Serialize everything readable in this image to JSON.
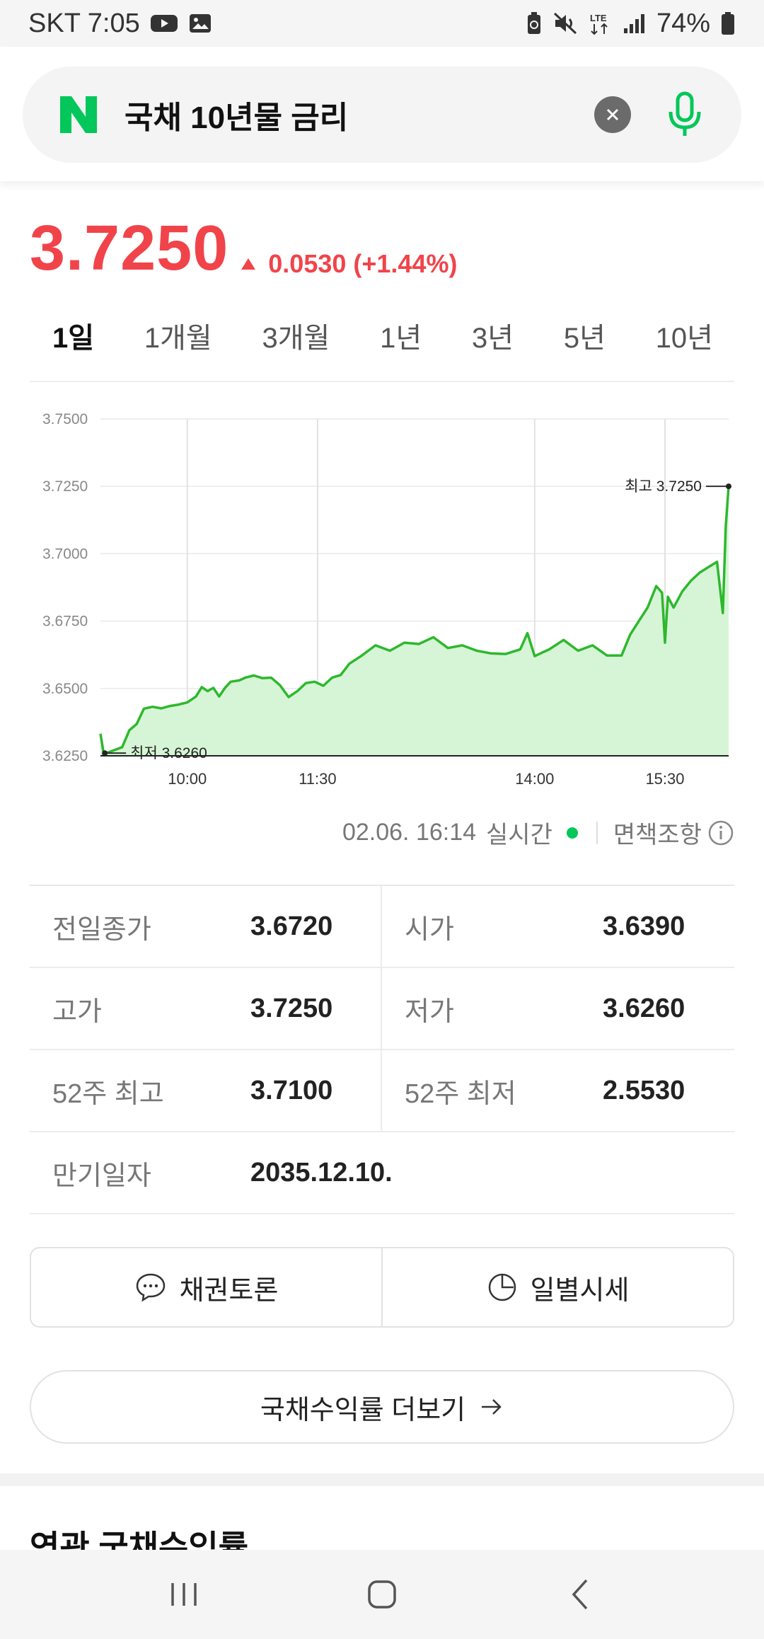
{
  "status_bar": {
    "carrier_time": "SKT 7:05",
    "battery": "74%",
    "icons": [
      "youtube-icon",
      "gallery-icon",
      "battery-saver-icon",
      "mute-icon",
      "lte-icon",
      "signal-icon",
      "battery-icon"
    ]
  },
  "search": {
    "query": "국채 10년물 금리",
    "logo": "N",
    "colors": {
      "naver_green": "#03c75a"
    }
  },
  "quote": {
    "price": "3.7250",
    "change": "0.0530 (+1.44%)",
    "direction": "up",
    "color": "#f0444a"
  },
  "tabs": [
    {
      "label": "1일",
      "active": true
    },
    {
      "label": "1개월",
      "active": false
    },
    {
      "label": "3개월",
      "active": false
    },
    {
      "label": "1년",
      "active": false
    },
    {
      "label": "3년",
      "active": false
    },
    {
      "label": "5년",
      "active": false
    },
    {
      "label": "10년",
      "active": false
    }
  ],
  "chart_data": {
    "type": "area",
    "title": "",
    "xlabel": "",
    "ylabel": "",
    "ylim": [
      3.625,
      3.75
    ],
    "xlim": [
      "09:00",
      "16:14"
    ],
    "y_ticks": [
      "3.7500",
      "3.7250",
      "3.7000",
      "3.6750",
      "3.6500",
      "3.6250"
    ],
    "x_ticks": [
      "10:00",
      "11:30",
      "14:00",
      "15:30"
    ],
    "grid": true,
    "line_color": "#2db82d",
    "fill_color": "#d6f5d6",
    "annotations": [
      {
        "label": "최고 3.7250",
        "time": "16:14",
        "value": 3.725
      },
      {
        "label": "최저 3.6260",
        "time": "09:03",
        "value": 3.626
      }
    ],
    "series": [
      {
        "points": [
          [
            "09:00",
            3.6332
          ],
          [
            "09:02",
            3.6266
          ],
          [
            "09:05",
            3.6262
          ],
          [
            "09:10",
            3.6272
          ],
          [
            "09:15",
            3.6282
          ],
          [
            "09:20",
            3.6345
          ],
          [
            "09:25",
            3.6368
          ],
          [
            "09:30",
            3.6425
          ],
          [
            "09:36",
            3.6432
          ],
          [
            "09:42",
            3.6426
          ],
          [
            "09:48",
            3.6435
          ],
          [
            "09:54",
            3.644
          ],
          [
            "10:00",
            3.6448
          ],
          [
            "10:06",
            3.647
          ],
          [
            "10:10",
            3.6505
          ],
          [
            "10:14",
            3.649
          ],
          [
            "10:18",
            3.6502
          ],
          [
            "10:22",
            3.647
          ],
          [
            "10:26",
            3.6502
          ],
          [
            "10:30",
            3.6525
          ],
          [
            "10:36",
            3.653
          ],
          [
            "10:40",
            3.654
          ],
          [
            "10:46",
            3.6548
          ],
          [
            "10:52",
            3.6538
          ],
          [
            "10:58",
            3.654
          ],
          [
            "11:04",
            3.6512
          ],
          [
            "11:10",
            3.6468
          ],
          [
            "11:16",
            3.649
          ],
          [
            "11:22",
            3.652
          ],
          [
            "11:28",
            3.6525
          ],
          [
            "11:34",
            3.651
          ],
          [
            "11:40",
            3.654
          ],
          [
            "11:46",
            3.655
          ],
          [
            "11:52",
            3.6592
          ],
          [
            "12:00",
            3.662
          ],
          [
            "12:10",
            3.666
          ],
          [
            "12:20",
            3.664
          ],
          [
            "12:30",
            3.667
          ],
          [
            "12:40",
            3.6665
          ],
          [
            "12:50",
            3.669
          ],
          [
            "13:00",
            3.665
          ],
          [
            "13:10",
            3.666
          ],
          [
            "13:20",
            3.664
          ],
          [
            "13:30",
            3.663
          ],
          [
            "13:40",
            3.6628
          ],
          [
            "13:50",
            3.6645
          ],
          [
            "13:55",
            3.6705
          ],
          [
            "14:00",
            3.662
          ],
          [
            "14:10",
            3.6645
          ],
          [
            "14:20",
            3.668
          ],
          [
            "14:30",
            3.664
          ],
          [
            "14:40",
            3.666
          ],
          [
            "14:50",
            3.6622
          ],
          [
            "15:00",
            3.6622
          ],
          [
            "15:06",
            3.67
          ],
          [
            "15:12",
            3.675
          ],
          [
            "15:18",
            3.68
          ],
          [
            "15:24",
            3.688
          ],
          [
            "15:28",
            3.6855
          ],
          [
            "15:30",
            3.667
          ],
          [
            "15:32",
            3.684
          ],
          [
            "15:36",
            3.68
          ],
          [
            "15:42",
            3.686
          ],
          [
            "15:48",
            3.69
          ],
          [
            "15:54",
            3.693
          ],
          [
            "16:00",
            3.695
          ],
          [
            "16:06",
            3.697
          ],
          [
            "16:10",
            3.678
          ],
          [
            "16:12",
            3.71
          ],
          [
            "16:14",
            3.725
          ]
        ]
      }
    ]
  },
  "timestamp": {
    "datetime": "02.06. 16:14",
    "realtime_label": "실시간",
    "disclaimer": "면책조항"
  },
  "stats": {
    "prev_close_label": "전일종가",
    "prev_close": "3.6720",
    "open_label": "시가",
    "open": "3.6390",
    "high_label": "고가",
    "high": "3.7250",
    "low_label": "저가",
    "low": "3.6260",
    "high52_label": "52주 최고",
    "high52": "3.7100",
    "low52_label": "52주 최저",
    "low52": "2.5530",
    "maturity_label": "만기일자",
    "maturity": "2035.12.10."
  },
  "buttons": {
    "discussion": "채권토론",
    "daily": "일별시세",
    "more": "국채수익률 더보기"
  },
  "section": {
    "title": "연관 국채수익률"
  }
}
